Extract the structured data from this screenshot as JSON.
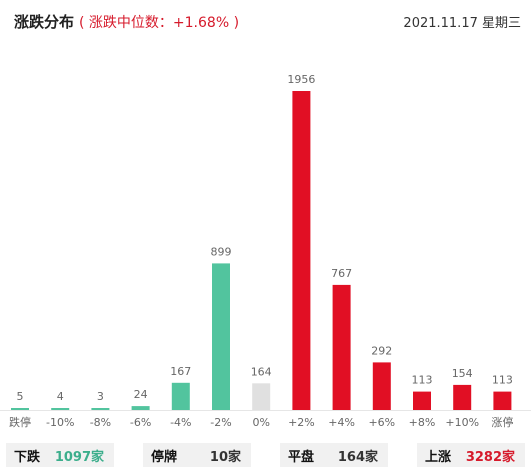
{
  "header": {
    "title": "涨跌分布",
    "subtitle": "( 涨跌中位数：+1.68% )",
    "date": "2021.11.17 星期三"
  },
  "chart_data": {
    "type": "bar",
    "categories": [
      "跌停",
      "-10%",
      "-8%",
      "-6%",
      "-4%",
      "-2%",
      "0%",
      "+2%",
      "+4%",
      "+6%",
      "+8%",
      "+10%",
      "涨停"
    ],
    "values": [
      5,
      4,
      3,
      24,
      167,
      899,
      164,
      1956,
      767,
      292,
      113,
      154,
      113
    ],
    "value_labels": [
      "5",
      "4",
      "3",
      "24",
      "167",
      "899",
      "164",
      "1956",
      "767",
      "292",
      "113",
      "154",
      "113"
    ],
    "bar_colors": [
      "#52c49e",
      "#52c49e",
      "#52c49e",
      "#52c49e",
      "#52c49e",
      "#52c49e",
      "#e0e0e0",
      "#e10f24",
      "#e10f24",
      "#e10f24",
      "#e10f24",
      "#e10f24",
      "#e10f24"
    ],
    "ylim": [
      0,
      1956
    ],
    "grid": false,
    "legend": "none"
  },
  "footer": {
    "stats": [
      {
        "label": "下跌",
        "value": "1097家",
        "color": "#3cae8c"
      },
      {
        "label": "停牌",
        "value": "10家",
        "color": "#333333"
      },
      {
        "label": "平盘",
        "value": "164家",
        "color": "#333333"
      },
      {
        "label": "上涨",
        "value": "3282家",
        "color": "#d61a2b"
      }
    ]
  }
}
